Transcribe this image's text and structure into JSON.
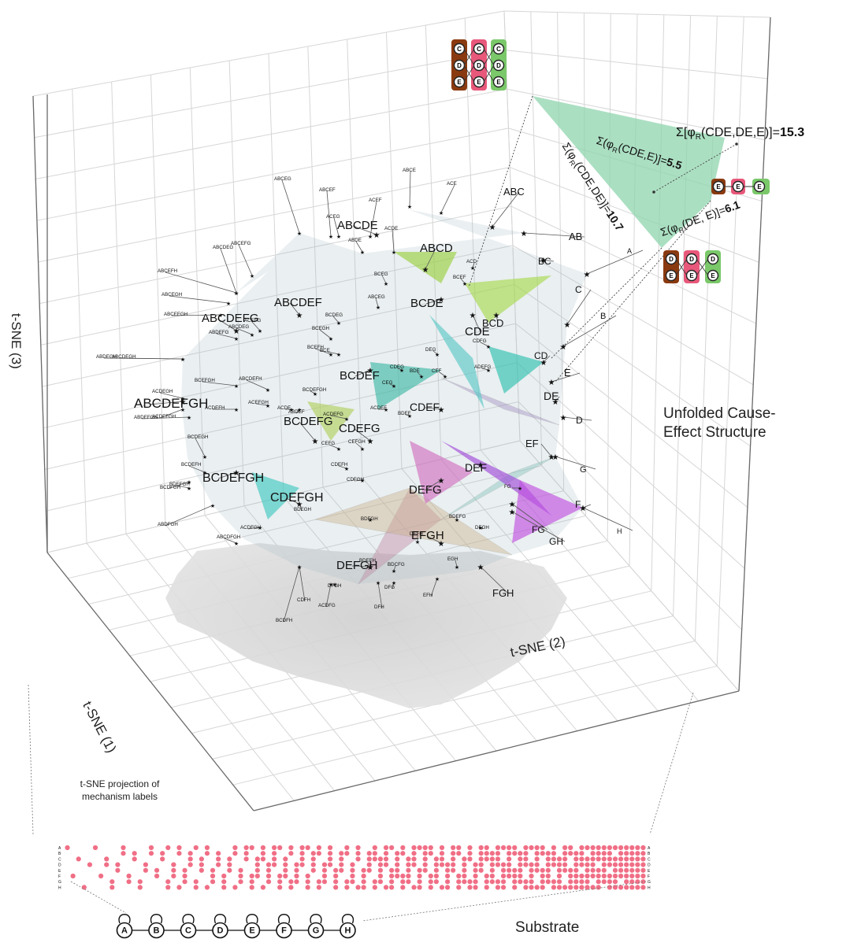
{
  "axes": {
    "z_label": "t-SNE (3)",
    "x_label": "t-SNE (1)",
    "y_label": "t-SNE (2)"
  },
  "structure_title_line1": "Unfolded Cause-",
  "structure_title_line2": "Effect Structure",
  "projection_note_line1": "t-SNE projection of",
  "projection_note_line2": "mechanism labels",
  "substrate_title": "Substrate",
  "substrate_nodes": [
    "A",
    "B",
    "C",
    "D",
    "E",
    "F",
    "G",
    "H"
  ],
  "relation": {
    "total_prefix": "Σ[φ",
    "total_sub": "R",
    "total_args": "(CDE,DE,E)]=",
    "total_value": "15.3",
    "cde_e_prefix": "Σ(φ",
    "cde_e_args": "(CDE,E)]=",
    "cde_e_value": "5.5",
    "cde_de_args": "(CDE,DE)]=",
    "cde_de_value": "10.7",
    "de_e_args": "(DE, E)]=",
    "de_e_value": "6.1"
  },
  "icon_colors": {
    "cause": "#8a3a10",
    "mechanism": "#e8587a",
    "effect": "#7ac86a",
    "relation_face": "#8fd4ad"
  },
  "mechanism_labels_large": [
    "ABCDE",
    "ABCD",
    "BCDE",
    "CDE",
    "BCD",
    "ABCDEF",
    "ABCDEFG",
    "BCDEF",
    "BCDEFG",
    "CDEF",
    "CDEFG",
    "ABCDEFGH",
    "DEFG",
    "DEF",
    "CDEFGH",
    "EFGH",
    "DEFGH",
    "BCDEFGH",
    "ABC",
    "AB",
    "BC",
    "A",
    "C",
    "B",
    "CD",
    "E",
    "DE",
    "D",
    "EF",
    "G",
    "F",
    "H",
    "FG",
    "GH",
    "FGH"
  ],
  "mechanism_labels_small": [
    "ABCE",
    "ACE",
    "ABCEF",
    "ACEF",
    "ABCEG",
    "ACEG",
    "ABDE",
    "ACDE",
    "ABCDEG",
    "ABCEFG",
    "ABCEFH",
    "ABCEGH",
    "ABCEEGH",
    "ABCDEGH",
    "ABDEGH",
    "ACDEGH",
    "ACDEFGH",
    "ABDEFGH",
    "ACDEFH",
    "ACEFGH",
    "BCEFGH",
    "ACDEFG",
    "ABCDEFH",
    "BCEFH",
    "BCEGH",
    "BCDEG",
    "ABCEG",
    "BCEG",
    "BCEF",
    "ACD",
    "BCE",
    "ACEFG",
    "ABCDEG",
    "ABDEFG",
    "BCDEGH",
    "BCDEFH",
    "BCDFGH",
    "BDEFGH",
    "ABDFGH",
    "ABCDFGH",
    "ACDFGH",
    "BDEGH",
    "CDEFH",
    "CDFGH",
    "BDFGH",
    "BDEFH",
    "BDCFG",
    "BDEFG",
    "DEGH",
    "DEFH",
    "EGH",
    "EFH",
    "DFG",
    "DFH",
    "DFGH",
    "CDFH",
    "BCDFH",
    "ACDFG",
    "CEFGH",
    "CEFG",
    "BDEF",
    "ACDEF",
    "BCDEFGH",
    "ABDEF",
    "ACDE",
    "CEG",
    "DEG",
    "BDE",
    "CEF",
    "CDEG",
    "CDFG",
    "ADEFG",
    "FG"
  ],
  "substrate_matrix_rows": [
    "A",
    "B",
    "C",
    "D",
    "E",
    "F",
    "G",
    "H"
  ]
}
